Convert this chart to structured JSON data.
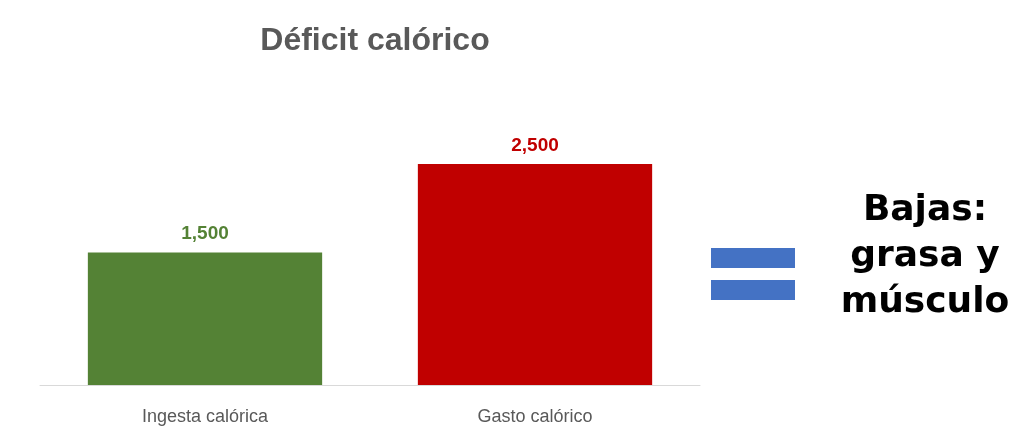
{
  "chart_data": {
    "type": "bar",
    "title": "Déficit calórico",
    "categories": [
      "Ingesta calórica",
      "Gasto calórico"
    ],
    "values": [
      1500,
      2500
    ],
    "value_labels": [
      "1,500",
      "2,500"
    ],
    "colors": [
      "#548235",
      "#c00000"
    ],
    "annotations": [
      "Bajas: grasa y músculo"
    ]
  }
}
